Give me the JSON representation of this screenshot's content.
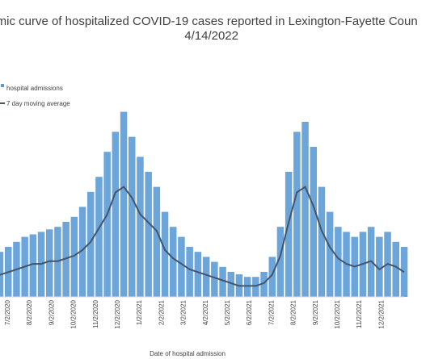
{
  "chart_data": {
    "type": "bar",
    "title": "emic curve of hospitalized COVID-19 cases reported in Lexington-Fayette Coun",
    "subtitle": "4/14/2022",
    "xlabel": "Date of hospital admission",
    "ylabel": "",
    "legend": {
      "placement": "top-left",
      "entries": [
        {
          "name": "hospital admissions",
          "kind": "bar",
          "color": "#5b9bd5"
        },
        {
          "name": "7 day moving average",
          "kind": "line",
          "color": "#44546a"
        }
      ]
    },
    "x_tick_labels": [
      "7/2/2020",
      "8/2/2020",
      "9/2/2020",
      "10/2/2020",
      "11/2/2020",
      "12/2/2020",
      "1/2/2021",
      "2/2/2021",
      "3/2/2021",
      "4/2/2021",
      "5/2/2021",
      "6/2/2021",
      "7/2/2021",
      "8/2/2021",
      "9/2/2021",
      "10/2/2021",
      "11/2/2021",
      "12/2/2021"
    ],
    "grid": false,
    "series": [
      {
        "name": "7 day moving average",
        "type": "line",
        "color": "#44546a",
        "x_weeks": [
          0,
          2,
          4,
          6,
          8,
          10,
          12,
          14,
          16,
          18,
          20,
          22,
          24,
          26,
          28,
          30,
          32,
          34,
          36,
          38,
          40,
          42,
          44,
          46,
          48,
          50,
          52,
          54,
          56,
          58,
          60,
          62,
          64,
          66,
          68,
          70,
          72,
          74,
          76,
          78,
          80,
          82,
          84,
          86,
          88,
          90,
          92,
          94,
          96,
          98
        ],
        "values": [
          8,
          9,
          10,
          11,
          12,
          12,
          13,
          13,
          14,
          15,
          17,
          20,
          25,
          30,
          38,
          40,
          36,
          30,
          27,
          24,
          17,
          14,
          12,
          10,
          9,
          8,
          7,
          6,
          5,
          4,
          4,
          4,
          5,
          8,
          15,
          27,
          38,
          40,
          33,
          24,
          18,
          14,
          12,
          11,
          12,
          13,
          10,
          12,
          11,
          9
        ]
      },
      {
        "name": "hospital admissions",
        "type": "bar",
        "color": "#5b9bd5",
        "x_weeks": [
          0,
          2,
          4,
          6,
          8,
          10,
          12,
          14,
          16,
          18,
          20,
          22,
          24,
          26,
          28,
          30,
          32,
          34,
          36,
          38,
          40,
          42,
          44,
          46,
          48,
          50,
          52,
          54,
          56,
          58,
          60,
          62,
          64,
          66,
          68,
          70,
          72,
          74,
          76,
          78,
          80,
          82,
          84,
          86,
          88,
          90,
          92,
          94,
          96,
          98
        ],
        "peak_values": [
          18,
          20,
          22,
          24,
          25,
          26,
          27,
          28,
          30,
          32,
          36,
          42,
          48,
          58,
          66,
          74,
          64,
          56,
          50,
          44,
          34,
          28,
          24,
          20,
          18,
          16,
          14,
          12,
          10,
          9,
          8,
          8,
          10,
          16,
          28,
          50,
          66,
          70,
          60,
          44,
          34,
          28,
          26,
          24,
          26,
          28,
          24,
          26,
          22,
          20
        ]
      }
    ]
  }
}
